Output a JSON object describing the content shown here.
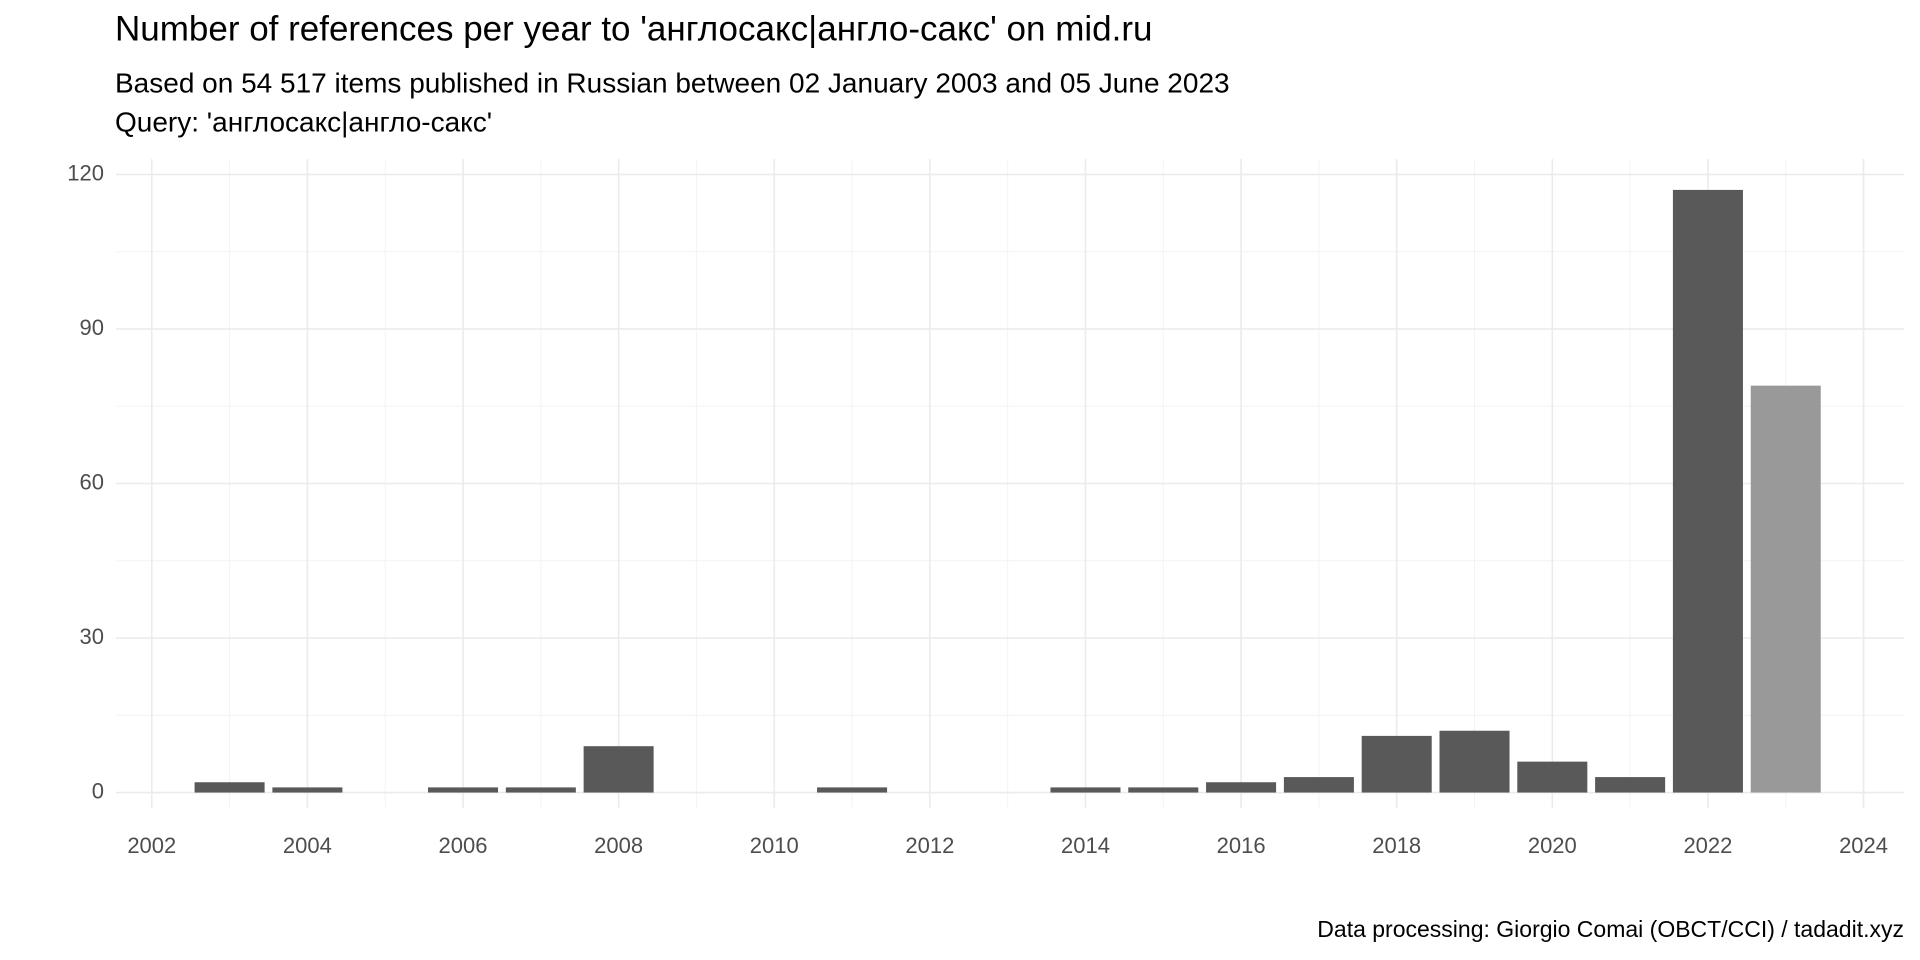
{
  "chart_data": {
    "type": "bar",
    "title": "Number of references per year to 'англосакс|англо-сакс' on mid.ru",
    "subtitle": "Based on 54 517 items published in Russian between 02 January 2003 and 05 June 2023",
    "query": "Query: 'англосакс|англо-сакс'",
    "caption": "Data processing: Giorgio Comai (OBCT/CCI) / tadadit.xyz",
    "x": [
      2003,
      2004,
      2006,
      2007,
      2008,
      2011,
      2014,
      2015,
      2016,
      2017,
      2018,
      2019,
      2020,
      2021,
      2022,
      2023
    ],
    "values": [
      2,
      1,
      1,
      1,
      9,
      1,
      1,
      1,
      2,
      3,
      11,
      12,
      6,
      3,
      117,
      79
    ],
    "colors": [
      "#595959",
      "#595959",
      "#595959",
      "#595959",
      "#595959",
      "#595959",
      "#595959",
      "#595959",
      "#595959",
      "#595959",
      "#595959",
      "#595959",
      "#595959",
      "#595959",
      "#595959",
      "#999999"
    ],
    "xlim": [
      2001.54,
      2024.52
    ],
    "xticks": [
      2002,
      2004,
      2006,
      2008,
      2010,
      2012,
      2014,
      2016,
      2018,
      2020,
      2022,
      2024
    ],
    "xminor": [
      2003,
      2005,
      2007,
      2009,
      2011,
      2013,
      2015,
      2017,
      2019,
      2021,
      2023
    ],
    "ylim": [
      -3,
      123
    ],
    "yticks": [
      0,
      30,
      60,
      90,
      120
    ],
    "yminor": [
      15,
      45,
      75,
      105
    ],
    "grid": true
  }
}
